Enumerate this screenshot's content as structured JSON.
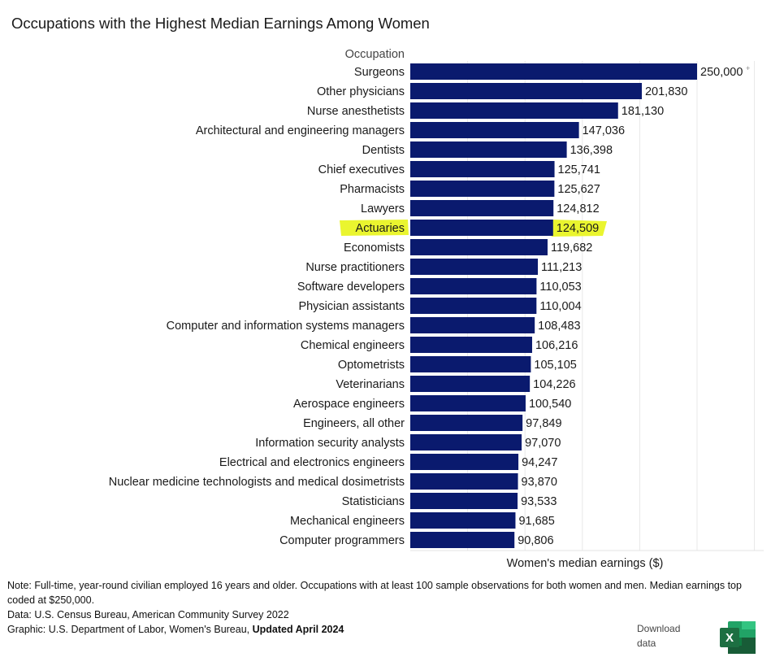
{
  "title": "Occupations with the Highest Median Earnings Among Women",
  "chart_data": {
    "type": "bar",
    "orientation": "horizontal",
    "category_header": "Occupation",
    "xlabel": "Women's median earnings ($)",
    "xlim": [
      0,
      250000
    ],
    "grid": true,
    "bar_color": "#0a1a6e",
    "highlight_color": "#eaf52f",
    "highlighted": "Actuaries",
    "categories": [
      "Surgeons",
      "Other physicians",
      "Nurse anesthetists",
      "Architectural and engineering managers",
      "Dentists",
      "Chief executives",
      "Pharmacists",
      "Lawyers",
      "Actuaries",
      "Economists",
      "Nurse practitioners",
      "Software developers",
      "Physician assistants",
      "Computer and information systems managers",
      "Chemical engineers",
      "Optometrists",
      "Veterinarians",
      "Aerospace engineers",
      "Engineers, all other",
      "Information security analysts",
      "Electrical and electronics engineers",
      "Nuclear medicine technologists and medical dosimetrists",
      "Statisticians",
      "Mechanical engineers",
      "Computer programmers"
    ],
    "values": [
      250000,
      201830,
      181130,
      147036,
      136398,
      125741,
      125627,
      124812,
      124509,
      119682,
      111213,
      110053,
      110004,
      108483,
      106216,
      105105,
      104226,
      100540,
      97849,
      97070,
      94247,
      93870,
      93533,
      91685,
      90806
    ],
    "labels": [
      "250,000",
      "201,830",
      "181,130",
      "147,036",
      "136,398",
      "125,741",
      "125,627",
      "124,812",
      "124,509",
      "119,682",
      "111,213",
      "110,053",
      "110,004",
      "108,483",
      "106,216",
      "105,105",
      "104,226",
      "100,540",
      "97,849",
      "97,070",
      "94,247",
      "93,870",
      "93,533",
      "91,685",
      "90,806"
    ],
    "topcode_marker": "+"
  },
  "notes": {
    "note": "Note: Full-time, year-round civilian employed 16 years and older. Occupations with at least 100 sample observations for both women and men. Median earnings top coded at $250,000.",
    "data_source": "Data: U.S. Census Bureau, American Community Survey 2022",
    "graphic_prefix": "Graphic: U.S. Department of Labor, Women's Bureau, ",
    "graphic_updated": "Updated April 2024"
  },
  "download": {
    "label": "Download data",
    "icon": "excel-icon",
    "icon_letter": "X",
    "icon_color": "#1d6f42"
  }
}
